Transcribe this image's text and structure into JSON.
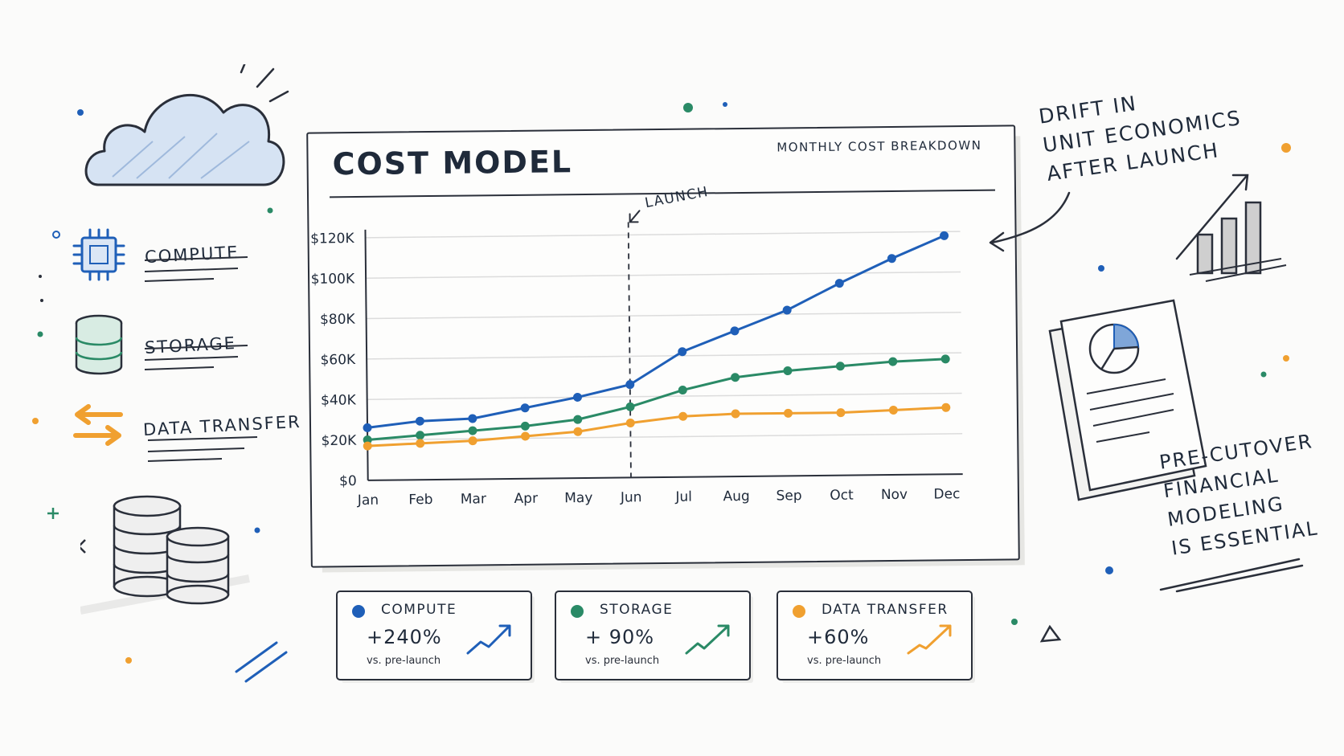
{
  "board": {
    "title": "COST MODEL",
    "subtitle": "MONTHLY COST BREAKDOWN",
    "launch_label": "LAUNCH"
  },
  "side_items": [
    {
      "label": "COMPUTE",
      "icon": "chip-icon",
      "color": "#1f5fb8"
    },
    {
      "label": "STORAGE",
      "icon": "database-icon",
      "color": "#2a8a66"
    },
    {
      "label": "DATA TRANSFER",
      "icon": "transfer-arrows-icon",
      "color": "#f0a030"
    }
  ],
  "cards": [
    {
      "name": "COMPUTE",
      "pct": "+240%",
      "note": "vs. pre-launch",
      "color": "#1f5fb8"
    },
    {
      "name": "STORAGE",
      "pct": "+ 90%",
      "note": "vs. pre-launch",
      "color": "#2a8a66"
    },
    {
      "name": "DATA TRANSFER",
      "pct": "+60%",
      "note": "vs. pre-launch",
      "color": "#f0a030"
    }
  ],
  "annotations": {
    "drift": [
      "DRIFT IN",
      "UNIT ECONOMICS",
      "AFTER LAUNCH"
    ],
    "pre_cutover": [
      "PRE-CUTOVER",
      "FINANCIAL",
      "MODELING",
      "IS ESSENTIAL"
    ]
  },
  "chart_data": {
    "type": "line",
    "title": "COST MODEL",
    "subtitle": "MONTHLY COST BREAKDOWN",
    "categories": [
      "Jan",
      "Feb",
      "Mar",
      "Apr",
      "May",
      "Jun",
      "Jul",
      "Aug",
      "Sep",
      "Oct",
      "Nov",
      "Dec"
    ],
    "y_ticks": [
      "$0",
      "$20K",
      "$40K",
      "$60K",
      "$80K",
      "$100K",
      "$120K"
    ],
    "ylim": [
      0,
      120000
    ],
    "grid": true,
    "event_marker": {
      "category": "Jun",
      "label": "LAUNCH"
    },
    "series": [
      {
        "name": "COMPUTE",
        "color": "#1f5fb8",
        "values": [
          26000,
          29000,
          30000,
          35000,
          40000,
          46000,
          62000,
          72000,
          82000,
          95000,
          107000,
          118000
        ]
      },
      {
        "name": "STORAGE",
        "color": "#2a8a66",
        "values": [
          20000,
          22000,
          24000,
          26000,
          29000,
          35000,
          43000,
          49000,
          52000,
          54000,
          56000,
          57000
        ]
      },
      {
        "name": "DATA TRANSFER",
        "color": "#f0a030",
        "values": [
          17000,
          18000,
          19000,
          21000,
          23000,
          27000,
          30000,
          31000,
          31000,
          31000,
          32000,
          33000
        ]
      }
    ]
  }
}
